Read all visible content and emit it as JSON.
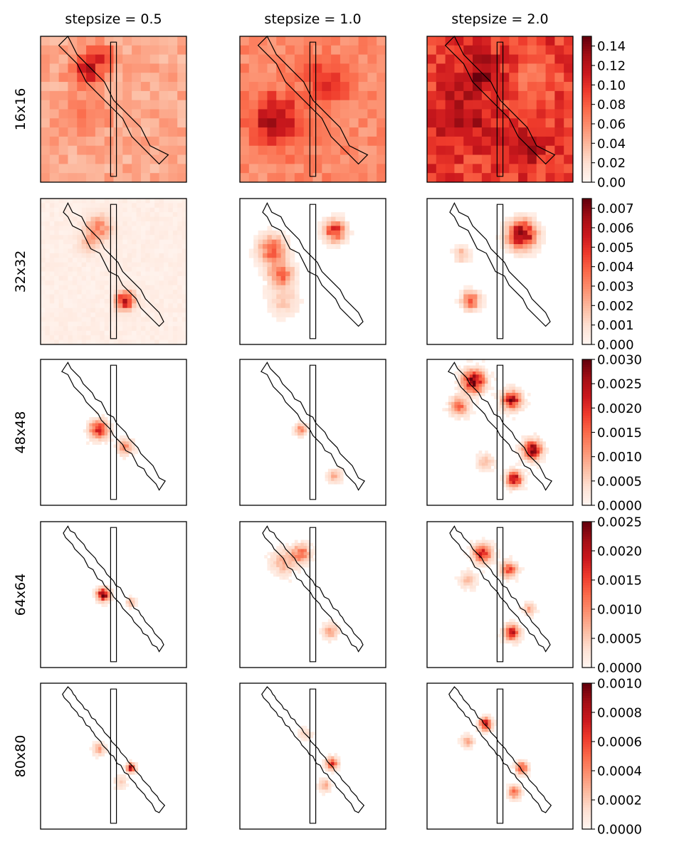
{
  "chart_data": {
    "type": "heatmap",
    "title": "",
    "colormap": {
      "name": "Reds",
      "stops": [
        "#fff5f0",
        "#fee0d2",
        "#fcbba1",
        "#fc9272",
        "#fb6a4a",
        "#ef3b2c",
        "#cb181d",
        "#a50f15",
        "#67000d"
      ]
    },
    "outline_color": "#000000",
    "columns": [
      {
        "label": "stepsize  = 0.5",
        "stepsize": 0.5
      },
      {
        "label": "stepsize  = 1.0",
        "stepsize": 1.0
      },
      {
        "label": "stepsize  = 2.0",
        "stepsize": 2.0
      }
    ],
    "rows": [
      {
        "label": "16x16",
        "grid": 16,
        "colorbar": {
          "min": 0,
          "max": 0.15,
          "ticks": [
            "0.00",
            "0.02",
            "0.04",
            "0.06",
            "0.08",
            "0.10",
            "0.12",
            "0.14"
          ],
          "tick_values": [
            0,
            0.02,
            0.04,
            0.06,
            0.08,
            0.1,
            0.12,
            0.14
          ]
        },
        "panels": [
          {
            "background": 0.045,
            "noise": 0.012,
            "sparse": false,
            "hotspots": [
              {
                "u": 0.32,
                "v": 0.22,
                "r": 0.12,
                "a": 0.065
              },
              {
                "u": 0.42,
                "v": 0.14,
                "r": 0.08,
                "a": 0.04
              },
              {
                "u": 0.3,
                "v": 0.58,
                "r": 0.14,
                "a": 0.025
              }
            ]
          },
          {
            "background": 0.06,
            "noise": 0.012,
            "sparse": false,
            "hotspots": [
              {
                "u": 0.25,
                "v": 0.58,
                "r": 0.17,
                "a": 0.07
              },
              {
                "u": 0.62,
                "v": 0.32,
                "r": 0.12,
                "a": 0.04
              },
              {
                "u": 0.45,
                "v": 0.22,
                "r": 0.1,
                "a": 0.02
              }
            ]
          },
          {
            "background": 0.095,
            "noise": 0.02,
            "sparse": false,
            "hotspots": [
              {
                "u": 0.35,
                "v": 0.25,
                "r": 0.14,
                "a": 0.04
              },
              {
                "u": 0.25,
                "v": 0.55,
                "r": 0.18,
                "a": 0.03
              },
              {
                "u": 0.7,
                "v": 0.75,
                "r": 0.12,
                "a": 0.03
              },
              {
                "u": 0.72,
                "v": 0.3,
                "r": 0.15,
                "a": -0.04
              }
            ]
          }
        ]
      },
      {
        "label": "32x32",
        "grid": 32,
        "colorbar": {
          "min": 0,
          "max": 0.0075,
          "ticks": [
            "0.000",
            "0.001",
            "0.002",
            "0.003",
            "0.004",
            "0.005",
            "0.006",
            "0.007"
          ],
          "tick_values": [
            0,
            0.001,
            0.002,
            0.003,
            0.004,
            0.005,
            0.006,
            0.007
          ]
        },
        "panels": [
          {
            "background": 0.0003,
            "noise": 0.0002,
            "sparse": false,
            "hotspots": [
              {
                "u": 0.58,
                "v": 0.7,
                "r": 0.06,
                "a": 0.006
              },
              {
                "u": 0.4,
                "v": 0.2,
                "r": 0.08,
                "a": 0.003
              },
              {
                "u": 0.33,
                "v": 0.3,
                "r": 0.07,
                "a": 0.0015
              }
            ]
          },
          {
            "background": 0.0,
            "noise": 0.0001,
            "sparse": true,
            "hotspots": [
              {
                "u": 0.22,
                "v": 0.35,
                "r": 0.09,
                "a": 0.004
              },
              {
                "u": 0.28,
                "v": 0.52,
                "r": 0.08,
                "a": 0.004
              },
              {
                "u": 0.65,
                "v": 0.22,
                "r": 0.07,
                "a": 0.005
              },
              {
                "u": 0.3,
                "v": 0.7,
                "r": 0.1,
                "a": 0.0015
              }
            ]
          },
          {
            "background": 0.0,
            "noise": 0.0001,
            "sparse": true,
            "hotspots": [
              {
                "u": 0.65,
                "v": 0.25,
                "r": 0.09,
                "a": 0.0075
              },
              {
                "u": 0.3,
                "v": 0.7,
                "r": 0.06,
                "a": 0.004
              },
              {
                "u": 0.24,
                "v": 0.38,
                "r": 0.05,
                "a": 0.002
              }
            ]
          }
        ]
      },
      {
        "label": "48x48",
        "grid": 48,
        "colorbar": {
          "min": 0,
          "max": 0.003,
          "ticks": [
            "0.0000",
            "0.0005",
            "0.0010",
            "0.0015",
            "0.0020",
            "0.0025",
            "0.0030"
          ],
          "tick_values": [
            0,
            0.0005,
            0.001,
            0.0015,
            0.002,
            0.0025,
            0.003
          ]
        },
        "panels": [
          {
            "background": 0.0,
            "noise": 0.0001,
            "sparse": true,
            "hotspots": [
              {
                "u": 0.4,
                "v": 0.48,
                "r": 0.06,
                "a": 0.0022
              },
              {
                "u": 0.58,
                "v": 0.6,
                "r": 0.05,
                "a": 0.0012
              }
            ]
          },
          {
            "background": 0.0,
            "noise": 5e-05,
            "sparse": true,
            "hotspots": [
              {
                "u": 0.42,
                "v": 0.48,
                "r": 0.04,
                "a": 0.0012
              },
              {
                "u": 0.65,
                "v": 0.8,
                "r": 0.05,
                "a": 0.0008
              }
            ]
          },
          {
            "background": 0.0,
            "noise": 0.0001,
            "sparse": true,
            "hotspots": [
              {
                "u": 0.32,
                "v": 0.15,
                "r": 0.07,
                "a": 0.003
              },
              {
                "u": 0.58,
                "v": 0.28,
                "r": 0.06,
                "a": 0.0025
              },
              {
                "u": 0.72,
                "v": 0.62,
                "r": 0.06,
                "a": 0.0028
              },
              {
                "u": 0.6,
                "v": 0.82,
                "r": 0.05,
                "a": 0.0028
              },
              {
                "u": 0.22,
                "v": 0.32,
                "r": 0.06,
                "a": 0.0015
              },
              {
                "u": 0.4,
                "v": 0.7,
                "r": 0.05,
                "a": 0.0008
              }
            ]
          }
        ]
      },
      {
        "label": "64x64",
        "grid": 64,
        "colorbar": {
          "min": 0,
          "max": 0.0025,
          "ticks": [
            "0.0000",
            "0.0005",
            "0.0010",
            "0.0015",
            "0.0020",
            "0.0025"
          ],
          "tick_values": [
            0,
            0.0005,
            0.001,
            0.0015,
            0.002,
            0.0025
          ]
        },
        "panels": [
          {
            "background": 0.0,
            "noise": 5e-05,
            "sparse": true,
            "hotspots": [
              {
                "u": 0.43,
                "v": 0.5,
                "r": 0.04,
                "a": 0.0025
              },
              {
                "u": 0.62,
                "v": 0.55,
                "r": 0.03,
                "a": 0.0008
              }
            ]
          },
          {
            "background": 0.0,
            "noise": 8e-05,
            "sparse": true,
            "hotspots": [
              {
                "u": 0.42,
                "v": 0.22,
                "r": 0.06,
                "a": 0.0012
              },
              {
                "u": 0.3,
                "v": 0.28,
                "r": 0.08,
                "a": 0.0007
              },
              {
                "u": 0.62,
                "v": 0.75,
                "r": 0.05,
                "a": 0.0008
              }
            ]
          },
          {
            "background": 0.0,
            "noise": 8e-05,
            "sparse": true,
            "hotspots": [
              {
                "u": 0.38,
                "v": 0.22,
                "r": 0.06,
                "a": 0.0018
              },
              {
                "u": 0.56,
                "v": 0.33,
                "r": 0.05,
                "a": 0.0015
              },
              {
                "u": 0.58,
                "v": 0.76,
                "r": 0.05,
                "a": 0.0018
              },
              {
                "u": 0.7,
                "v": 0.6,
                "r": 0.04,
                "a": 0.0008
              },
              {
                "u": 0.28,
                "v": 0.4,
                "r": 0.05,
                "a": 0.0006
              }
            ]
          }
        ]
      },
      {
        "label": "80x80",
        "grid": 80,
        "colorbar": {
          "min": 0,
          "max": 0.001,
          "ticks": [
            "0.0000",
            "0.0002",
            "0.0004",
            "0.0006",
            "0.0008",
            "0.0010"
          ],
          "tick_values": [
            0,
            0.0002,
            0.0004,
            0.0006,
            0.0008,
            0.001
          ]
        },
        "panels": [
          {
            "background": 0.0,
            "noise": 2e-05,
            "sparse": true,
            "hotspots": [
              {
                "u": 0.62,
                "v": 0.58,
                "r": 0.03,
                "a": 0.0008
              },
              {
                "u": 0.4,
                "v": 0.45,
                "r": 0.04,
                "a": 0.0003
              },
              {
                "u": 0.55,
                "v": 0.68,
                "r": 0.04,
                "a": 0.0002
              }
            ]
          },
          {
            "background": 0.0,
            "noise": 2e-05,
            "sparse": true,
            "hotspots": [
              {
                "u": 0.63,
                "v": 0.55,
                "r": 0.04,
                "a": 0.0006
              },
              {
                "u": 0.58,
                "v": 0.7,
                "r": 0.04,
                "a": 0.0003
              },
              {
                "u": 0.45,
                "v": 0.35,
                "r": 0.04,
                "a": 0.0002
              }
            ]
          },
          {
            "background": 0.0,
            "noise": 3e-05,
            "sparse": true,
            "hotspots": [
              {
                "u": 0.4,
                "v": 0.28,
                "r": 0.04,
                "a": 0.0008
              },
              {
                "u": 0.65,
                "v": 0.58,
                "r": 0.04,
                "a": 0.0006
              },
              {
                "u": 0.6,
                "v": 0.75,
                "r": 0.04,
                "a": 0.0005
              },
              {
                "u": 0.28,
                "v": 0.4,
                "r": 0.04,
                "a": 0.0003
              }
            ]
          }
        ]
      }
    ]
  }
}
